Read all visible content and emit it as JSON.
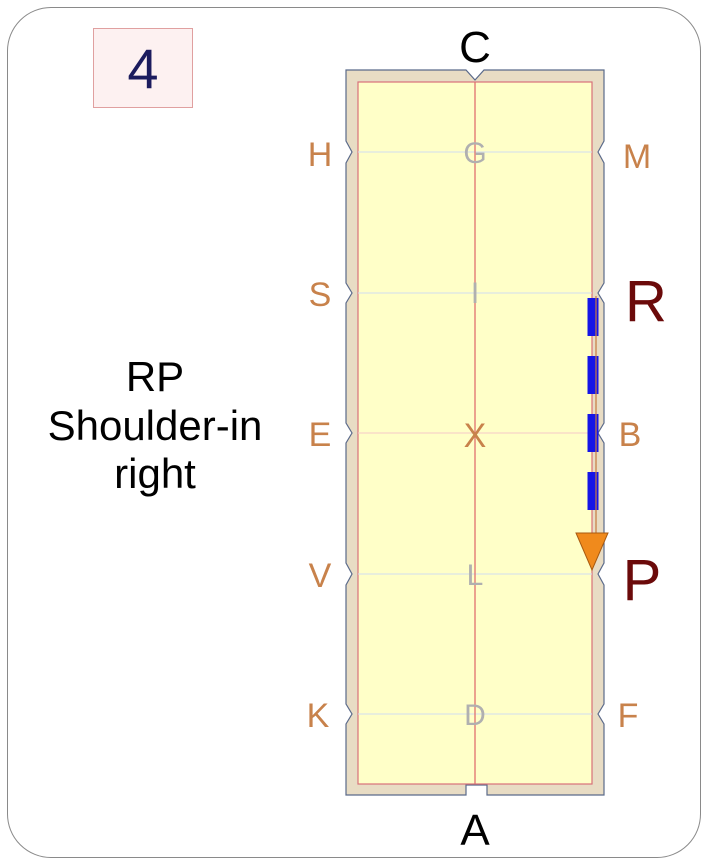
{
  "exercise_number": "4",
  "caption": {
    "line1": "RP",
    "line2": "Shoulder-in",
    "line3": "right"
  },
  "arena_letters": {
    "top": "C",
    "bottom": "A",
    "left": [
      "H",
      "S",
      "E",
      "V",
      "K"
    ],
    "right": [
      "M",
      "R",
      "B",
      "P",
      "F"
    ],
    "center": [
      "G",
      "I",
      "X",
      "L",
      "D"
    ]
  },
  "path": {
    "start": "R",
    "end": "P",
    "color": "#1515e6",
    "arrow_color": "#f08a1c"
  },
  "colors": {
    "arena_fill": "#ffffc8",
    "arena_border": "#e8dcc4",
    "letter_color": "#c8824b",
    "center_letter_color": "#b0b0b0",
    "highlight_letter_color": "#6b0a0a",
    "centerline_color": "#e07070"
  }
}
